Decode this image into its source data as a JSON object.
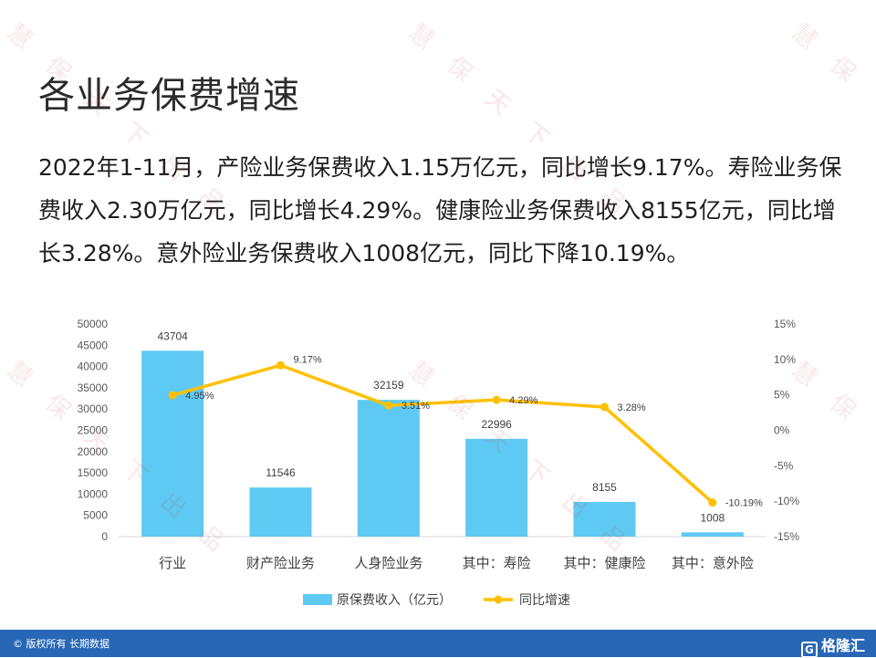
{
  "header": {
    "title": "各业务保费增速"
  },
  "description": "2022年1-11月，产险业务保费收入1.15万亿元，同比增长9.17%。寿险业务保费收入2.30万亿元，同比增长4.29%。健康险业务保费收入8155亿元，同比增长3.28%。意外险业务保费收入1008亿元，同比下降10.19%。",
  "chart_data": {
    "type": "bar",
    "title": "",
    "categories": [
      "行业",
      "财产险业务",
      "人身险业务",
      "其中：寿险",
      "其中：健康险",
      "其中：意外险"
    ],
    "series": [
      {
        "name": "原保费收入（亿元）",
        "type": "bar",
        "axis": "left",
        "values": [
          43704,
          11546,
          32159,
          22996,
          8155,
          1008
        ],
        "labels": [
          "43704",
          "11546",
          "32159",
          "22996",
          "8155",
          "1008"
        ],
        "color": "#5ec9f3"
      },
      {
        "name": "同比增速",
        "type": "line",
        "axis": "right",
        "values": [
          4.95,
          9.17,
          3.51,
          4.29,
          3.28,
          -10.19
        ],
        "labels": [
          "4.95%",
          "9.17%",
          "3.51%",
          "4.29%",
          "3.28%",
          "-10.19%"
        ],
        "color": "#ffc000"
      }
    ],
    "y_left": {
      "ylim": [
        0,
        50000
      ],
      "ticks": [
        "0",
        "5000",
        "10000",
        "15000",
        "20000",
        "25000",
        "30000",
        "35000",
        "40000",
        "45000",
        "50000"
      ]
    },
    "y_right": {
      "ylim": [
        -15,
        15
      ],
      "ticks": [
        "-15%",
        "-10%",
        "-5%",
        "0%",
        "5%",
        "10%",
        "15%"
      ]
    },
    "legend_position": "bottom",
    "grid": false
  },
  "watermark": {
    "chars": [
      "慧",
      "保",
      "天",
      "下",
      "出",
      "品"
    ],
    "color": "#d63c3c"
  },
  "footer": {
    "copyright": "© 版权所有 长期数据",
    "brand": "格隆汇",
    "brand_mark": "G",
    "bar_color": "#2767b6"
  }
}
